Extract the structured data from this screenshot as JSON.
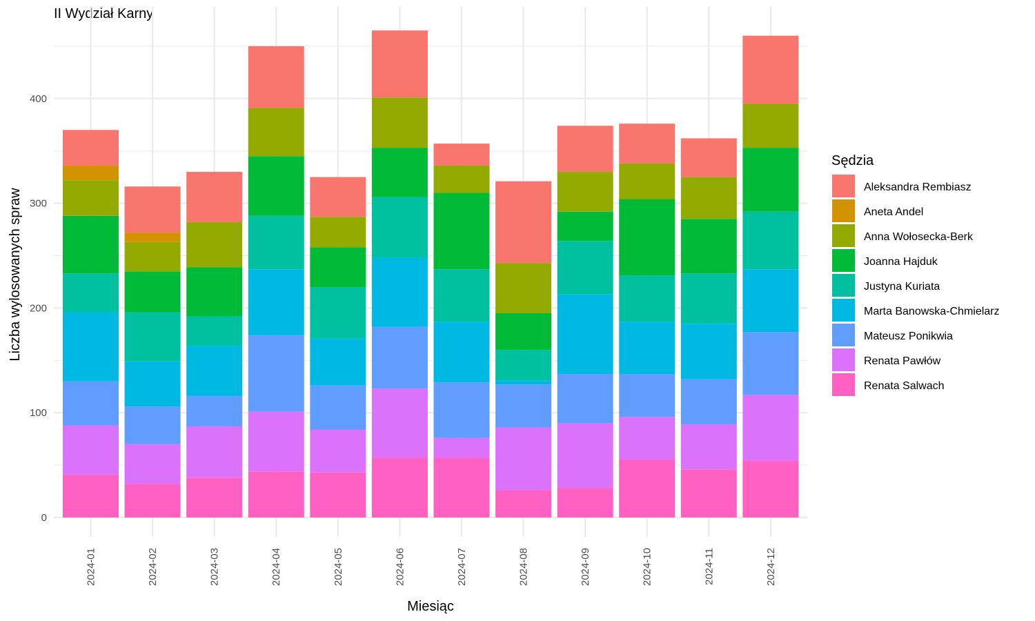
{
  "chart_data": {
    "type": "bar",
    "stacked": true,
    "title": "II Wydział Karny",
    "xlabel": "Miesiąc",
    "ylabel": "Liczba wylosowanych spraw",
    "ylim": [
      0,
      480
    ],
    "yticks": [
      0,
      100,
      200,
      300,
      400
    ],
    "grid": true,
    "legend_position": "right",
    "legend_title": "Sędzia",
    "categories": [
      "2024-01",
      "2024-02",
      "2024-03",
      "2024-04",
      "2024-05",
      "2024-06",
      "2024-07",
      "2024-08",
      "2024-09",
      "2024-10",
      "2024-11",
      "2024-12"
    ],
    "series": [
      {
        "name": "Renata Salwach",
        "color": "#FF61C3",
        "values": [
          41,
          32,
          38,
          44,
          43,
          57,
          57,
          26,
          28,
          55,
          46,
          54
        ]
      },
      {
        "name": "Renata Pawłów",
        "color": "#DB72FB",
        "values": [
          47,
          38,
          49,
          57,
          41,
          66,
          19,
          60,
          62,
          41,
          43,
          63
        ]
      },
      {
        "name": "Mateusz Ponikwia",
        "color": "#619CFF",
        "values": [
          42,
          36,
          29,
          73,
          42,
          59,
          53,
          41,
          47,
          41,
          43,
          60
        ]
      },
      {
        "name": "Marta Banowska-Chmielarz",
        "color": "#00B9E3",
        "values": [
          66,
          43,
          48,
          63,
          45,
          66,
          58,
          4,
          76,
          50,
          53,
          60
        ]
      },
      {
        "name": "Justyna Kuriata",
        "color": "#00C19F",
        "values": [
          37,
          47,
          28,
          51,
          49,
          58,
          50,
          29,
          51,
          44,
          48,
          55
        ]
      },
      {
        "name": "Joanna Hajduk",
        "color": "#00BA38",
        "values": [
          55,
          39,
          47,
          57,
          38,
          47,
          73,
          35,
          28,
          73,
          52,
          61
        ]
      },
      {
        "name": "Anna Wołosecka-Berk",
        "color": "#93AA00",
        "values": [
          34,
          28,
          43,
          46,
          29,
          48,
          26,
          48,
          38,
          34,
          40,
          42
        ]
      },
      {
        "name": "Aneta Andel",
        "color": "#D39200",
        "values": [
          14,
          9,
          0,
          0,
          0,
          0,
          0,
          0,
          0,
          0,
          0,
          0
        ]
      },
      {
        "name": "Aleksandra Rembiasz",
        "color": "#F8766D",
        "values": [
          34,
          44,
          48,
          59,
          38,
          64,
          21,
          78,
          44,
          38,
          37,
          65
        ]
      }
    ],
    "legend_order": [
      "Aleksandra Rembiasz",
      "Aneta Andel",
      "Anna Wołosecka-Berk",
      "Joanna Hajduk",
      "Justyna Kuriata",
      "Marta Banowska-Chmielarz",
      "Mateusz Ponikwia",
      "Renata Pawłów",
      "Renata Salwach"
    ]
  }
}
